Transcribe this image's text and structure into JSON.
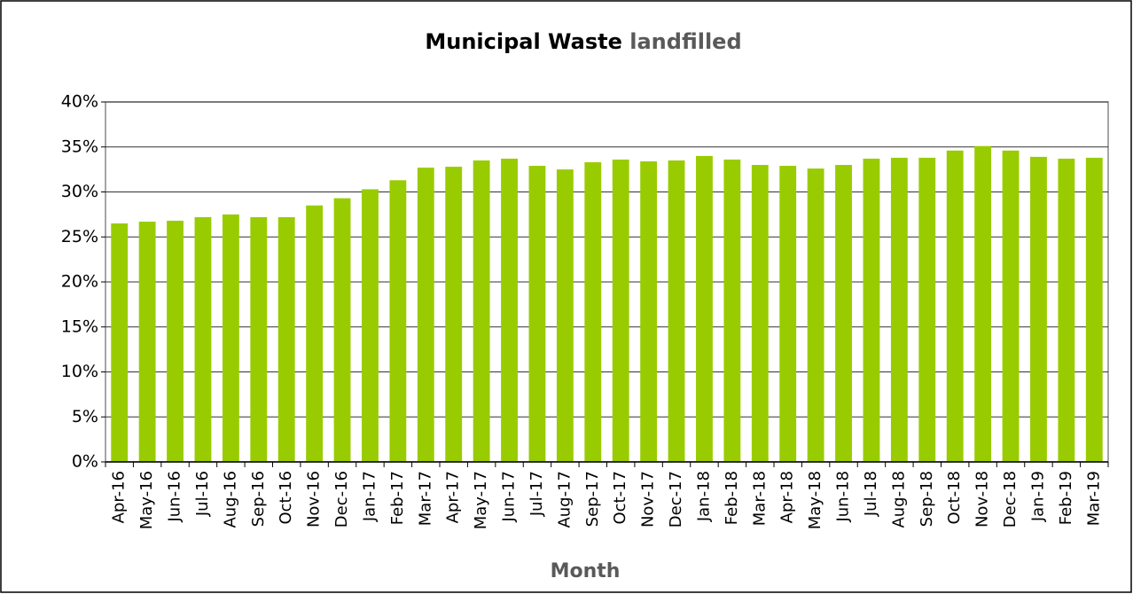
{
  "chart_data": {
    "type": "bar",
    "title": [
      "Municipal Waste",
      "landfilled"
    ],
    "x_label": "Month",
    "categories": [
      "Apr-16",
      "May-16",
      "Jun-16",
      "Jul-16",
      "Aug-16",
      "Sep-16",
      "Oct-16",
      "Nov-16",
      "Dec-16",
      "Jan-17",
      "Feb-17",
      "Mar-17",
      "Apr-17",
      "May-17",
      "Jun-17",
      "Jul-17",
      "Aug-17",
      "Sep-17",
      "Oct-17",
      "Nov-17",
      "Dec-17",
      "Jan-18",
      "Feb-18",
      "Mar-18",
      "Apr-18",
      "May-18",
      "Jun-18",
      "Jul-18",
      "Aug-18",
      "Sep-18",
      "Oct-18",
      "Nov-18",
      "Dec-18",
      "Jan-19",
      "Feb-19",
      "Mar-19"
    ],
    "values": [
      26.5,
      26.7,
      26.8,
      27.2,
      27.5,
      27.2,
      27.2,
      28.5,
      29.3,
      30.3,
      31.3,
      32.7,
      32.8,
      33.5,
      33.7,
      32.9,
      32.5,
      33.3,
      33.6,
      33.4,
      33.5,
      34.0,
      33.6,
      33.0,
      32.9,
      32.6,
      33.0,
      33.7,
      33.8,
      33.8,
      34.6,
      35.1,
      34.6,
      33.9,
      33.7,
      33.8
    ],
    "color": "#99cc00",
    "ylim": [
      0,
      40
    ],
    "yticks": [
      {
        "value": 0,
        "label": "0%"
      },
      {
        "value": 5,
        "label": "5%"
      },
      {
        "value": 10,
        "label": "10%"
      },
      {
        "value": 15,
        "label": "15%"
      },
      {
        "value": 20,
        "label": "20%"
      },
      {
        "value": 25,
        "label": "25%"
      },
      {
        "value": 30,
        "label": "30%"
      },
      {
        "value": 35,
        "label": "35%"
      },
      {
        "value": 40,
        "label": "40%"
      }
    ],
    "grid": true
  }
}
